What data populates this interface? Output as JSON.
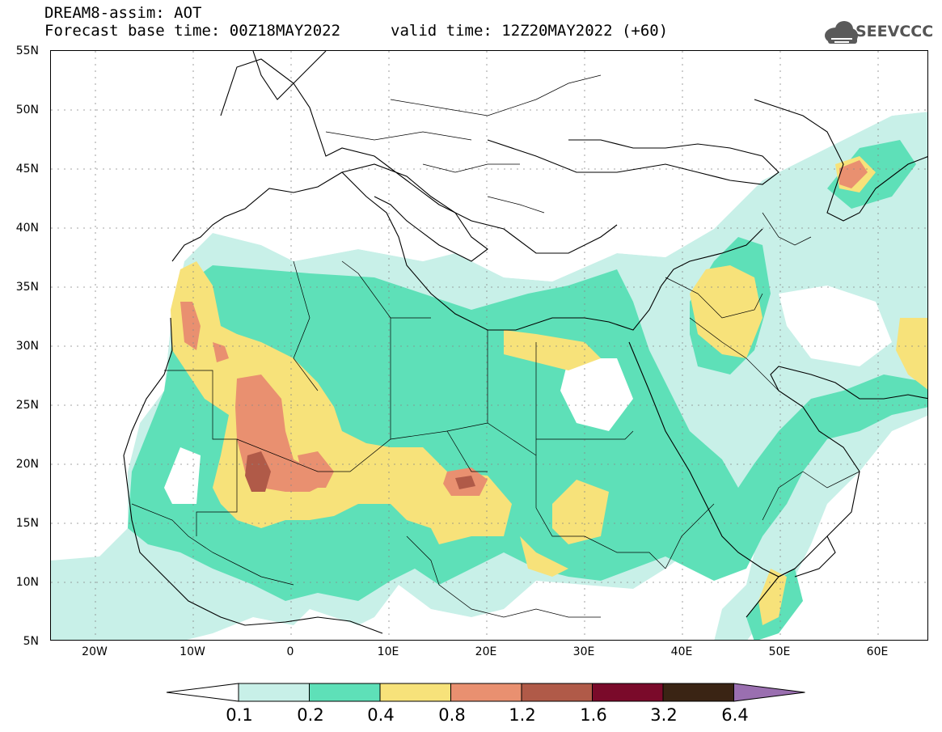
{
  "header": {
    "line1": "DREAM8-assim: AOT",
    "line2": "Forecast base time: 00Z18MAY2022",
    "line3": "valid time: 12Z20MAY2022 (+60)"
  },
  "logo": {
    "text": "SEEVCCC",
    "icon": "cloud-icon"
  },
  "axes": {
    "lat_labels": [
      "55N",
      "50N",
      "45N",
      "40N",
      "35N",
      "30N",
      "25N",
      "20N",
      "15N",
      "10N",
      "5N"
    ],
    "lon_labels": [
      "20W",
      "10W",
      "0",
      "10E",
      "20E",
      "30E",
      "40E",
      "50E",
      "60E"
    ]
  },
  "colorbar": {
    "labels": [
      "0.1",
      "0.2",
      "0.4",
      "0.8",
      "1.2",
      "1.6",
      "3.2",
      "6.4"
    ],
    "colors": [
      "#ffffff",
      "#c8f0e8",
      "#5ee0b8",
      "#f7e27a",
      "#e99070",
      "#b05a48",
      "#7a0a2a",
      "#3a2414",
      "#9a6fb0"
    ]
  }
}
